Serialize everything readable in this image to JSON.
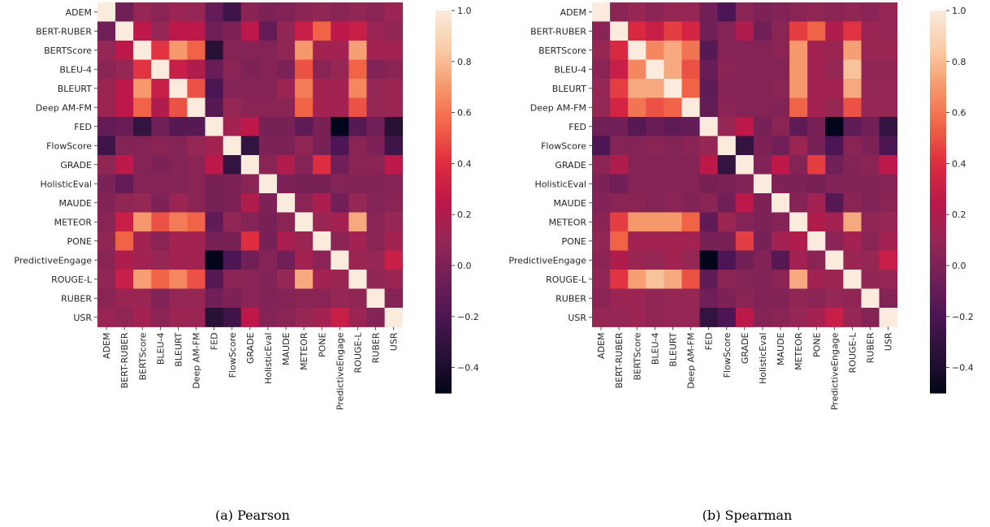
{
  "chart_data": [
    {
      "type": "heatmap",
      "caption": "(a) Pearson",
      "row_labels": [
        "ADEM",
        "BERT-RUBER",
        "BERTScore",
        "BLEU-4",
        "BLEURT",
        "Deep AM-FM",
        "FED",
        "FlowScore",
        "GRADE",
        "HolisticEval",
        "MAUDE",
        "METEOR",
        "PONE",
        "PredictiveEngage",
        "ROUGE-L",
        "RUBER",
        "USR"
      ],
      "col_labels": [
        "ADEM",
        "BERT-RUBER",
        "BERTScore",
        "BLEU-4",
        "BLEURT",
        "Deep AM-FM",
        "FED",
        "FlowScore",
        "GRADE",
        "HolisticEval",
        "MAUDE",
        "METEOR",
        "PONE",
        "PredictiveEngage",
        "ROUGE-L",
        "RUBER",
        "USR"
      ],
      "colorbar": {
        "min": -0.5,
        "max": 1.0,
        "ticks": [
          1.0,
          0.8,
          0.6,
          0.4,
          0.2,
          0.0,
          -0.2,
          -0.4
        ],
        "tick_labels": [
          "1.0",
          "0.8",
          "0.6",
          "0.4",
          "0.2",
          "0.0",
          "−0.2",
          "−0.4"
        ]
      },
      "values": [
        [
          1.0,
          -0.05,
          0.1,
          0.05,
          0.12,
          0.1,
          -0.1,
          -0.25,
          0.05,
          0.0,
          0.02,
          0.05,
          0.08,
          0.05,
          0.08,
          0.05,
          0.12
        ],
        [
          -0.05,
          1.0,
          0.25,
          0.1,
          0.25,
          0.25,
          -0.05,
          0.0,
          0.25,
          -0.1,
          0.08,
          0.3,
          0.55,
          0.25,
          0.3,
          0.12,
          0.08
        ],
        [
          0.1,
          0.25,
          1.0,
          0.42,
          0.7,
          0.55,
          -0.35,
          0.03,
          0.03,
          0.03,
          0.08,
          0.7,
          0.15,
          0.15,
          0.72,
          0.15,
          0.15
        ],
        [
          0.05,
          0.1,
          0.42,
          1.0,
          0.3,
          0.2,
          -0.08,
          0.05,
          0.0,
          0.03,
          0.0,
          0.5,
          0.05,
          0.1,
          0.55,
          0.02,
          0.05
        ],
        [
          0.12,
          0.25,
          0.7,
          0.3,
          1.0,
          0.5,
          -0.2,
          0.03,
          0.03,
          0.03,
          0.12,
          0.62,
          0.15,
          0.15,
          0.65,
          0.1,
          0.12
        ],
        [
          0.12,
          0.25,
          0.55,
          0.2,
          0.5,
          1.0,
          -0.15,
          0.1,
          0.05,
          0.05,
          0.05,
          0.55,
          0.15,
          0.15,
          0.5,
          0.1,
          0.12
        ],
        [
          -0.1,
          -0.08,
          -0.3,
          -0.05,
          -0.15,
          -0.15,
          1.0,
          0.15,
          0.25,
          -0.02,
          -0.02,
          -0.12,
          -0.02,
          -0.5,
          -0.15,
          -0.05,
          -0.35
        ],
        [
          -0.25,
          0.03,
          0.03,
          0.05,
          0.03,
          0.1,
          0.15,
          1.0,
          -0.3,
          0.0,
          0.0,
          0.08,
          -0.02,
          -0.2,
          0.05,
          0.0,
          -0.25
        ],
        [
          0.08,
          0.25,
          0.03,
          0.0,
          0.03,
          0.05,
          0.25,
          -0.3,
          1.0,
          0.05,
          0.2,
          0.03,
          0.4,
          -0.05,
          0.05,
          0.05,
          0.25
        ],
        [
          0.0,
          -0.1,
          0.03,
          0.03,
          0.03,
          0.05,
          -0.02,
          0.0,
          0.05,
          1.0,
          0.0,
          -0.02,
          -0.02,
          0.03,
          0.02,
          0.02,
          0.03
        ],
        [
          0.02,
          0.08,
          0.1,
          0.0,
          0.12,
          0.05,
          -0.02,
          0.0,
          0.2,
          0.0,
          1.0,
          0.05,
          0.18,
          -0.05,
          0.1,
          0.03,
          0.05
        ],
        [
          0.05,
          0.3,
          0.7,
          0.5,
          0.62,
          0.55,
          -0.12,
          0.08,
          0.03,
          -0.02,
          0.05,
          1.0,
          0.12,
          0.15,
          0.75,
          0.05,
          0.1
        ],
        [
          0.08,
          0.55,
          0.15,
          0.05,
          0.15,
          0.15,
          -0.02,
          -0.02,
          0.4,
          -0.02,
          0.18,
          0.12,
          1.0,
          0.05,
          0.15,
          0.05,
          0.15
        ],
        [
          0.05,
          0.2,
          0.15,
          0.1,
          0.15,
          0.15,
          -0.5,
          -0.2,
          -0.05,
          0.03,
          -0.05,
          0.15,
          0.05,
          1.0,
          0.12,
          0.1,
          0.3
        ],
        [
          0.08,
          0.3,
          0.72,
          0.55,
          0.65,
          0.5,
          -0.15,
          0.05,
          0.05,
          0.02,
          0.1,
          0.75,
          0.15,
          0.12,
          1.0,
          0.08,
          0.12
        ],
        [
          0.05,
          0.12,
          0.12,
          0.02,
          0.1,
          0.1,
          -0.05,
          0.0,
          0.05,
          0.02,
          0.03,
          0.05,
          0.05,
          0.1,
          0.08,
          1.0,
          0.03
        ],
        [
          0.12,
          0.08,
          0.15,
          0.05,
          0.12,
          0.12,
          -0.35,
          -0.25,
          0.25,
          0.03,
          0.05,
          0.1,
          0.15,
          0.3,
          0.12,
          0.03,
          1.0
        ]
      ]
    },
    {
      "type": "heatmap",
      "caption": "(b) Spearman",
      "row_labels": [
        "ADEM",
        "BERT-RUBER",
        "BERTScore",
        "BLEU-4",
        "BLEURT",
        "Deep AM-FM",
        "FED",
        "FlowScore",
        "GRADE",
        "HolisticEval",
        "MAUDE",
        "METEOR",
        "PONE",
        "PredictiveEngage",
        "ROUGE-L",
        "RUBER",
        "USR"
      ],
      "col_labels": [
        "ADEM",
        "BERT-RUBER",
        "BERTScore",
        "BLEU-4",
        "BLEURT",
        "Deep AM-FM",
        "FED",
        "FlowScore",
        "GRADE",
        "HolisticEval",
        "MAUDE",
        "METEOR",
        "PONE",
        "PredictiveEngage",
        "ROUGE-L",
        "RUBER",
        "USR"
      ],
      "colorbar": {
        "min": -0.5,
        "max": 1.0,
        "ticks": [
          1.0,
          0.8,
          0.6,
          0.4,
          0.2,
          0.0,
          -0.2,
          -0.4
        ],
        "tick_labels": [
          "1.0",
          "0.8",
          "0.6",
          "0.4",
          "0.2",
          "0.0",
          "−0.2",
          "−0.4"
        ]
      },
      "values": [
        [
          1.0,
          0.05,
          0.1,
          0.05,
          0.1,
          0.1,
          -0.05,
          -0.2,
          0.05,
          0.0,
          0.02,
          0.05,
          0.08,
          0.05,
          0.08,
          0.05,
          0.1
        ],
        [
          0.05,
          1.0,
          0.38,
          0.3,
          0.45,
          0.35,
          -0.05,
          0.03,
          0.2,
          -0.05,
          0.05,
          0.45,
          0.55,
          0.2,
          0.42,
          0.12,
          0.1
        ],
        [
          0.1,
          0.38,
          1.0,
          0.65,
          0.75,
          0.6,
          -0.15,
          0.03,
          0.03,
          0.03,
          0.05,
          0.7,
          0.15,
          0.12,
          0.72,
          0.12,
          0.12
        ],
        [
          0.05,
          0.3,
          0.65,
          1.0,
          0.75,
          0.5,
          -0.08,
          0.05,
          0.03,
          0.03,
          0.03,
          0.7,
          0.15,
          0.1,
          0.82,
          0.08,
          0.08
        ],
        [
          0.1,
          0.45,
          0.75,
          0.75,
          1.0,
          0.55,
          -0.12,
          0.03,
          0.03,
          0.03,
          0.05,
          0.7,
          0.15,
          0.15,
          0.75,
          0.1,
          0.1
        ],
        [
          0.1,
          0.35,
          0.6,
          0.5,
          0.55,
          1.0,
          -0.1,
          0.05,
          0.03,
          0.03,
          0.02,
          0.55,
          0.15,
          0.1,
          0.5,
          0.1,
          0.1
        ],
        [
          -0.05,
          -0.05,
          -0.15,
          -0.08,
          -0.12,
          -0.1,
          1.0,
          0.1,
          0.25,
          -0.02,
          0.05,
          -0.12,
          -0.02,
          -0.5,
          -0.12,
          -0.05,
          -0.3
        ],
        [
          -0.2,
          0.03,
          0.03,
          0.05,
          0.03,
          0.05,
          0.1,
          1.0,
          -0.3,
          0.0,
          -0.05,
          0.12,
          -0.02,
          -0.2,
          0.05,
          0.0,
          -0.2
        ],
        [
          0.05,
          0.2,
          0.03,
          0.03,
          0.03,
          0.03,
          0.25,
          -0.3,
          1.0,
          0.02,
          0.25,
          0.03,
          0.45,
          -0.05,
          0.03,
          0.05,
          0.25
        ],
        [
          0.0,
          -0.05,
          0.03,
          0.03,
          0.03,
          0.03,
          -0.02,
          0.0,
          0.02,
          1.0,
          0.0,
          0.0,
          -0.02,
          0.02,
          0.02,
          0.02,
          0.03
        ],
        [
          0.02,
          0.05,
          0.05,
          0.03,
          0.05,
          0.02,
          0.05,
          -0.05,
          0.25,
          0.0,
          1.0,
          0.03,
          0.15,
          -0.15,
          0.05,
          0.02,
          0.05
        ],
        [
          0.05,
          0.45,
          0.7,
          0.7,
          0.7,
          0.55,
          -0.12,
          0.12,
          0.03,
          0.0,
          0.03,
          1.0,
          0.2,
          0.15,
          0.75,
          0.08,
          0.1
        ],
        [
          0.08,
          0.55,
          0.15,
          0.15,
          0.15,
          0.15,
          -0.02,
          -0.02,
          0.45,
          -0.02,
          0.15,
          0.2,
          1.0,
          0.05,
          0.15,
          0.05,
          0.15
        ],
        [
          0.05,
          0.2,
          0.12,
          0.1,
          0.15,
          0.1,
          -0.5,
          -0.2,
          -0.05,
          0.02,
          -0.15,
          0.15,
          0.05,
          1.0,
          0.12,
          0.1,
          0.3
        ],
        [
          0.08,
          0.42,
          0.72,
          0.82,
          0.75,
          0.5,
          -0.12,
          0.05,
          0.03,
          0.02,
          0.05,
          0.75,
          0.15,
          0.12,
          1.0,
          0.08,
          0.1
        ],
        [
          0.05,
          0.12,
          0.12,
          0.08,
          0.1,
          0.1,
          -0.05,
          0.0,
          0.05,
          0.02,
          0.02,
          0.08,
          0.05,
          0.1,
          0.08,
          1.0,
          0.03
        ],
        [
          0.1,
          0.1,
          0.12,
          0.08,
          0.1,
          0.1,
          -0.3,
          -0.2,
          0.25,
          0.03,
          0.05,
          0.1,
          0.15,
          0.3,
          0.1,
          0.03,
          1.0
        ]
      ]
    }
  ]
}
